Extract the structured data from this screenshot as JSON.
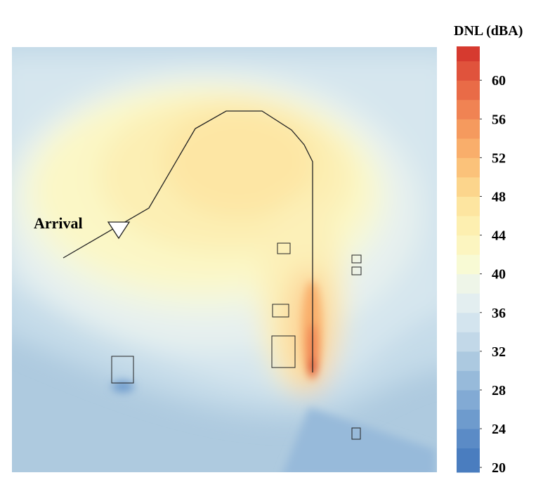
{
  "chart_data": {
    "type": "contour",
    "annotation": "Arrival",
    "colorbar": {
      "label": "DNL (dBA)",
      "lim": [
        19.5,
        63.5
      ],
      "ticks": [
        20,
        24,
        28,
        32,
        36,
        40,
        44,
        48,
        52,
        56,
        60
      ],
      "step": 2,
      "colors": [
        "#4a7dbf",
        "#5b8bc6",
        "#6e9bcd",
        "#82aad4",
        "#97bada",
        "#acc9e0",
        "#c2d8e8",
        "#d3e4ee",
        "#e3eef0",
        "#eef5e8",
        "#f8fad4",
        "#fcf5c0",
        "#fdefb0",
        "#fde5a0",
        "#fcd58c",
        "#fbc27a",
        "#f9ae6b",
        "#f59a5e",
        "#f08353",
        "#e96b47",
        "#e0533c",
        "#d63a2f"
      ]
    }
  }
}
